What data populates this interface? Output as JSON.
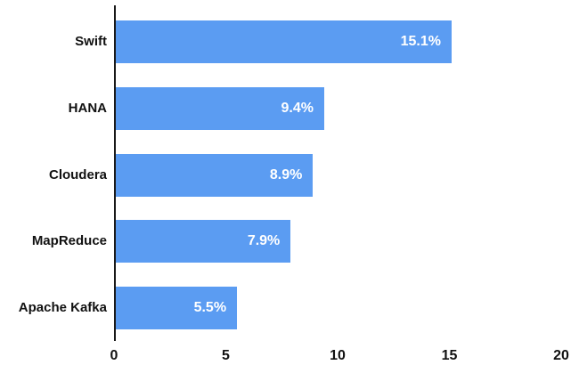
{
  "chart_data": {
    "type": "bar",
    "orientation": "horizontal",
    "title": "",
    "xlabel": "",
    "ylabel": "",
    "categories": [
      "Swift",
      "HANA",
      "Cloudera",
      "MapReduce",
      "Apache Kafka"
    ],
    "values": [
      15.1,
      9.4,
      8.9,
      7.9,
      5.5
    ],
    "value_labels": [
      "15.1%",
      "9.4%",
      "8.9%",
      "7.9%",
      "5.5%"
    ],
    "xlim": [
      0,
      20
    ],
    "x_ticks": [
      0,
      5,
      10,
      15,
      20
    ],
    "x_tick_labels": [
      "0",
      "5",
      "10",
      "15",
      "20"
    ],
    "grid": false,
    "legend": false,
    "colors": {
      "bar": "#5b9cf2",
      "axis": "#1a1a1a",
      "category_text": "#111111",
      "value_text": "#ffffff",
      "background": "#ffffff"
    }
  },
  "layout_note": "single horizontal bar chart, value labels inside bars at right end"
}
